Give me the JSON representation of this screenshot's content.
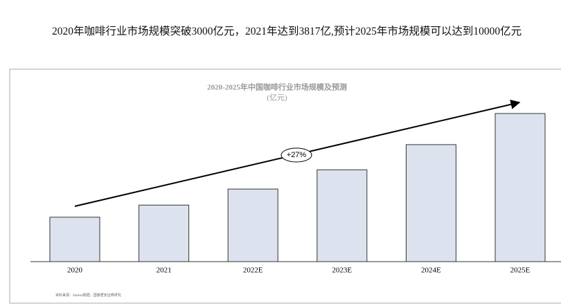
{
  "heading": "2020年咖啡行业市场规模突破3000亿元，2021年达到3817亿,预计2025年市场规模可以达到10000亿元",
  "chart_data": {
    "type": "bar",
    "title": "2020-2025年中国咖啡行业市场规模及预测",
    "subtitle": "(亿元)",
    "categories": [
      "2020",
      "2021",
      "2022E",
      "2023E",
      "2024E",
      "2025E"
    ],
    "values": [
      3000,
      3817,
      4900,
      6200,
      7900,
      10000
    ],
    "color": "#dde3ee",
    "annotation": "+27%",
    "source": "资料来源：Statista数据，国泰君安证券研究"
  }
}
